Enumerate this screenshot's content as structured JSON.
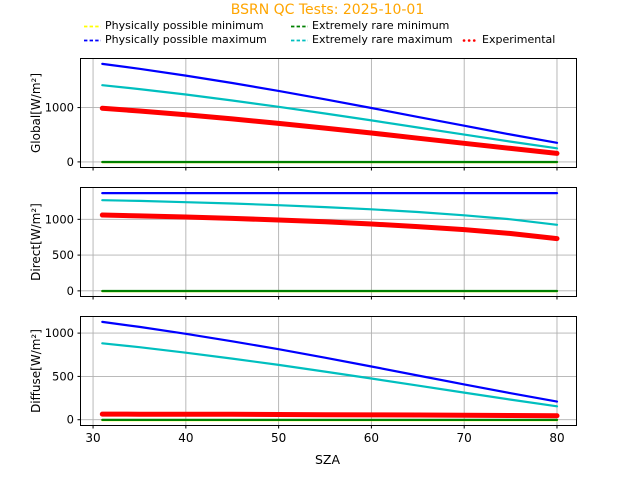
{
  "title": {
    "text": "BSRN QC Tests: 2025-10-01",
    "color": "#FFA500"
  },
  "xlabel": "SZA",
  "legend": {
    "items": [
      {
        "label": "Physically possible minimum",
        "color": "#FFFF00",
        "style": "dashed"
      },
      {
        "label": "Physically possible maximum",
        "color": "#0000FF",
        "style": "dashed"
      },
      {
        "label": "Extremely rare minimum",
        "color": "#008000",
        "style": "dashed"
      },
      {
        "label": "Extremely rare maximum",
        "color": "#00BFBF",
        "style": "dashed"
      },
      {
        "label": "Experimental",
        "color": "#FF0000",
        "style": "dotted"
      }
    ]
  },
  "colors": {
    "grid": "#b0b0b0",
    "axis": "#000000",
    "background": "#ffffff"
  },
  "chart_data": [
    {
      "type": "line",
      "title": "",
      "ylabel": "Global[W/m²]",
      "xlabel": "",
      "x": [
        31,
        35,
        40,
        45,
        50,
        55,
        60,
        65,
        70,
        75,
        80
      ],
      "series": [
        {
          "name": "Physically possible minimum",
          "color": "#FFFF00",
          "values": [
            -4,
            -4,
            -4,
            -4,
            -4,
            -4,
            -4,
            -4,
            -4,
            -4,
            -4
          ]
        },
        {
          "name": "Physically possible maximum",
          "color": "#0000FF",
          "values": [
            1803,
            1713,
            1588,
            1452,
            1306,
            1152,
            992,
            829,
            666,
            505,
            351
          ]
        },
        {
          "name": "Extremely rare minimum",
          "color": "#008000",
          "values": [
            -2,
            -2,
            -2,
            -2,
            -2,
            -2,
            -2,
            -2,
            -2,
            -2,
            -2
          ]
        },
        {
          "name": "Extremely rare maximum",
          "color": "#00BFBF",
          "values": [
            1412,
            1340,
            1240,
            1131,
            1014,
            891,
            763,
            633,
            502,
            374,
            250
          ]
        },
        {
          "name": "Experimental",
          "color": "#FF0000",
          "width": 5,
          "values": [
            987,
            937,
            867,
            791,
            709,
            622,
            531,
            437,
            343,
            249,
            157
          ]
        }
      ],
      "xlim": [
        28.7,
        82.05
      ],
      "ylim": [
        -94,
        1894
      ],
      "xticks": [
        30,
        40,
        50,
        60,
        70,
        80
      ],
      "yticks": [
        0,
        1000
      ],
      "grid": true,
      "legend_position": "above-figure"
    },
    {
      "type": "line",
      "title": "",
      "ylabel": "Direct[W/m²]",
      "xlabel": "",
      "x": [
        31,
        35,
        40,
        45,
        50,
        55,
        60,
        65,
        70,
        75,
        80
      ],
      "series": [
        {
          "name": "Physically possible minimum",
          "color": "#FFFF00",
          "values": [
            -4,
            -4,
            -4,
            -4,
            -4,
            -4,
            -4,
            -4,
            -4,
            -4,
            -4
          ]
        },
        {
          "name": "Physically possible maximum",
          "color": "#0000FF",
          "values": [
            1366,
            1366,
            1366,
            1366,
            1366,
            1366,
            1366,
            1366,
            1366,
            1366,
            1366
          ]
        },
        {
          "name": "Extremely rare minimum",
          "color": "#008000",
          "values": [
            -2,
            -2,
            -2,
            -2,
            -2,
            -2,
            -2,
            -2,
            -2,
            -2,
            -2
          ]
        },
        {
          "name": "Extremely rare maximum",
          "color": "#00BFBF",
          "values": [
            1268,
            1257,
            1240,
            1221,
            1198,
            1171,
            1140,
            1102,
            1057,
            1000,
            924
          ]
        },
        {
          "name": "Experimental",
          "color": "#FF0000",
          "width": 5,
          "values": [
            1060,
            1048,
            1032,
            1013,
            991,
            965,
            935,
            899,
            856,
            802,
            731
          ]
        }
      ],
      "xlim": [
        28.7,
        82.05
      ],
      "ylim": [
        -72,
        1438
      ],
      "xticks": [
        30,
        40,
        50,
        60,
        70,
        80
      ],
      "yticks": [
        0,
        500,
        1000
      ],
      "grid": true
    },
    {
      "type": "line",
      "title": "",
      "ylabel": "Diffuse[W/m²]",
      "xlabel": "SZA",
      "x": [
        31,
        35,
        40,
        45,
        50,
        55,
        60,
        65,
        70,
        75,
        80
      ],
      "series": [
        {
          "name": "Physically possible minimum",
          "color": "#FFFF00",
          "values": [
            -4,
            -4,
            -4,
            -4,
            -4,
            -4,
            -4,
            -4,
            -4,
            -4,
            -4
          ]
        },
        {
          "name": "Physically possible maximum",
          "color": "#0000FF",
          "values": [
            1129,
            1072,
            992,
            906,
            814,
            716,
            615,
            511,
            408,
            306,
            209
          ]
        },
        {
          "name": "Extremely rare minimum",
          "color": "#008000",
          "values": [
            -2,
            -2,
            -2,
            -2,
            -2,
            -2,
            -2,
            -2,
            -2,
            -2,
            -2
          ]
        },
        {
          "name": "Extremely rare maximum",
          "color": "#00BFBF",
          "values": [
            882,
            837,
            774,
            706,
            633,
            556,
            476,
            394,
            313,
            232,
            155
          ]
        },
        {
          "name": "Experimental",
          "color": "#FF0000",
          "width": 5,
          "values": [
            65,
            64,
            63,
            62,
            60,
            58,
            56,
            54,
            52,
            49,
            46
          ]
        }
      ],
      "xlim": [
        28.7,
        82.05
      ],
      "ylim": [
        -61,
        1186
      ],
      "xticks": [
        30,
        40,
        50,
        60,
        70,
        80
      ],
      "yticks": [
        0,
        500,
        1000
      ],
      "grid": true
    }
  ]
}
